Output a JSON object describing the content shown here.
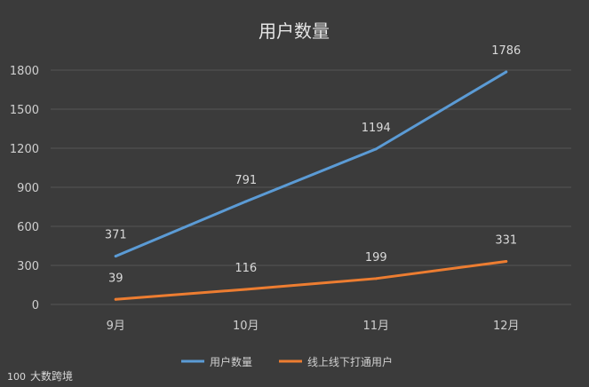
{
  "chart_data": {
    "type": "line",
    "title": "用户数量",
    "categories": [
      "9月",
      "10月",
      "11月",
      "12月"
    ],
    "series": [
      {
        "name": "用户数量",
        "values": [
          371,
          791,
          1194,
          1786
        ],
        "color": "#5b9bd5"
      },
      {
        "name": "线上线下打通用户",
        "values": [
          39,
          116,
          199,
          331
        ],
        "color": "#ed7d31"
      }
    ],
    "ylim": [
      0,
      1800
    ],
    "yticks": [
      0,
      300,
      600,
      900,
      1200,
      1500,
      1800
    ],
    "grid": true,
    "legend_position": "bottom"
  },
  "watermark": {
    "logo_text": "100",
    "text": "大数跨境"
  }
}
